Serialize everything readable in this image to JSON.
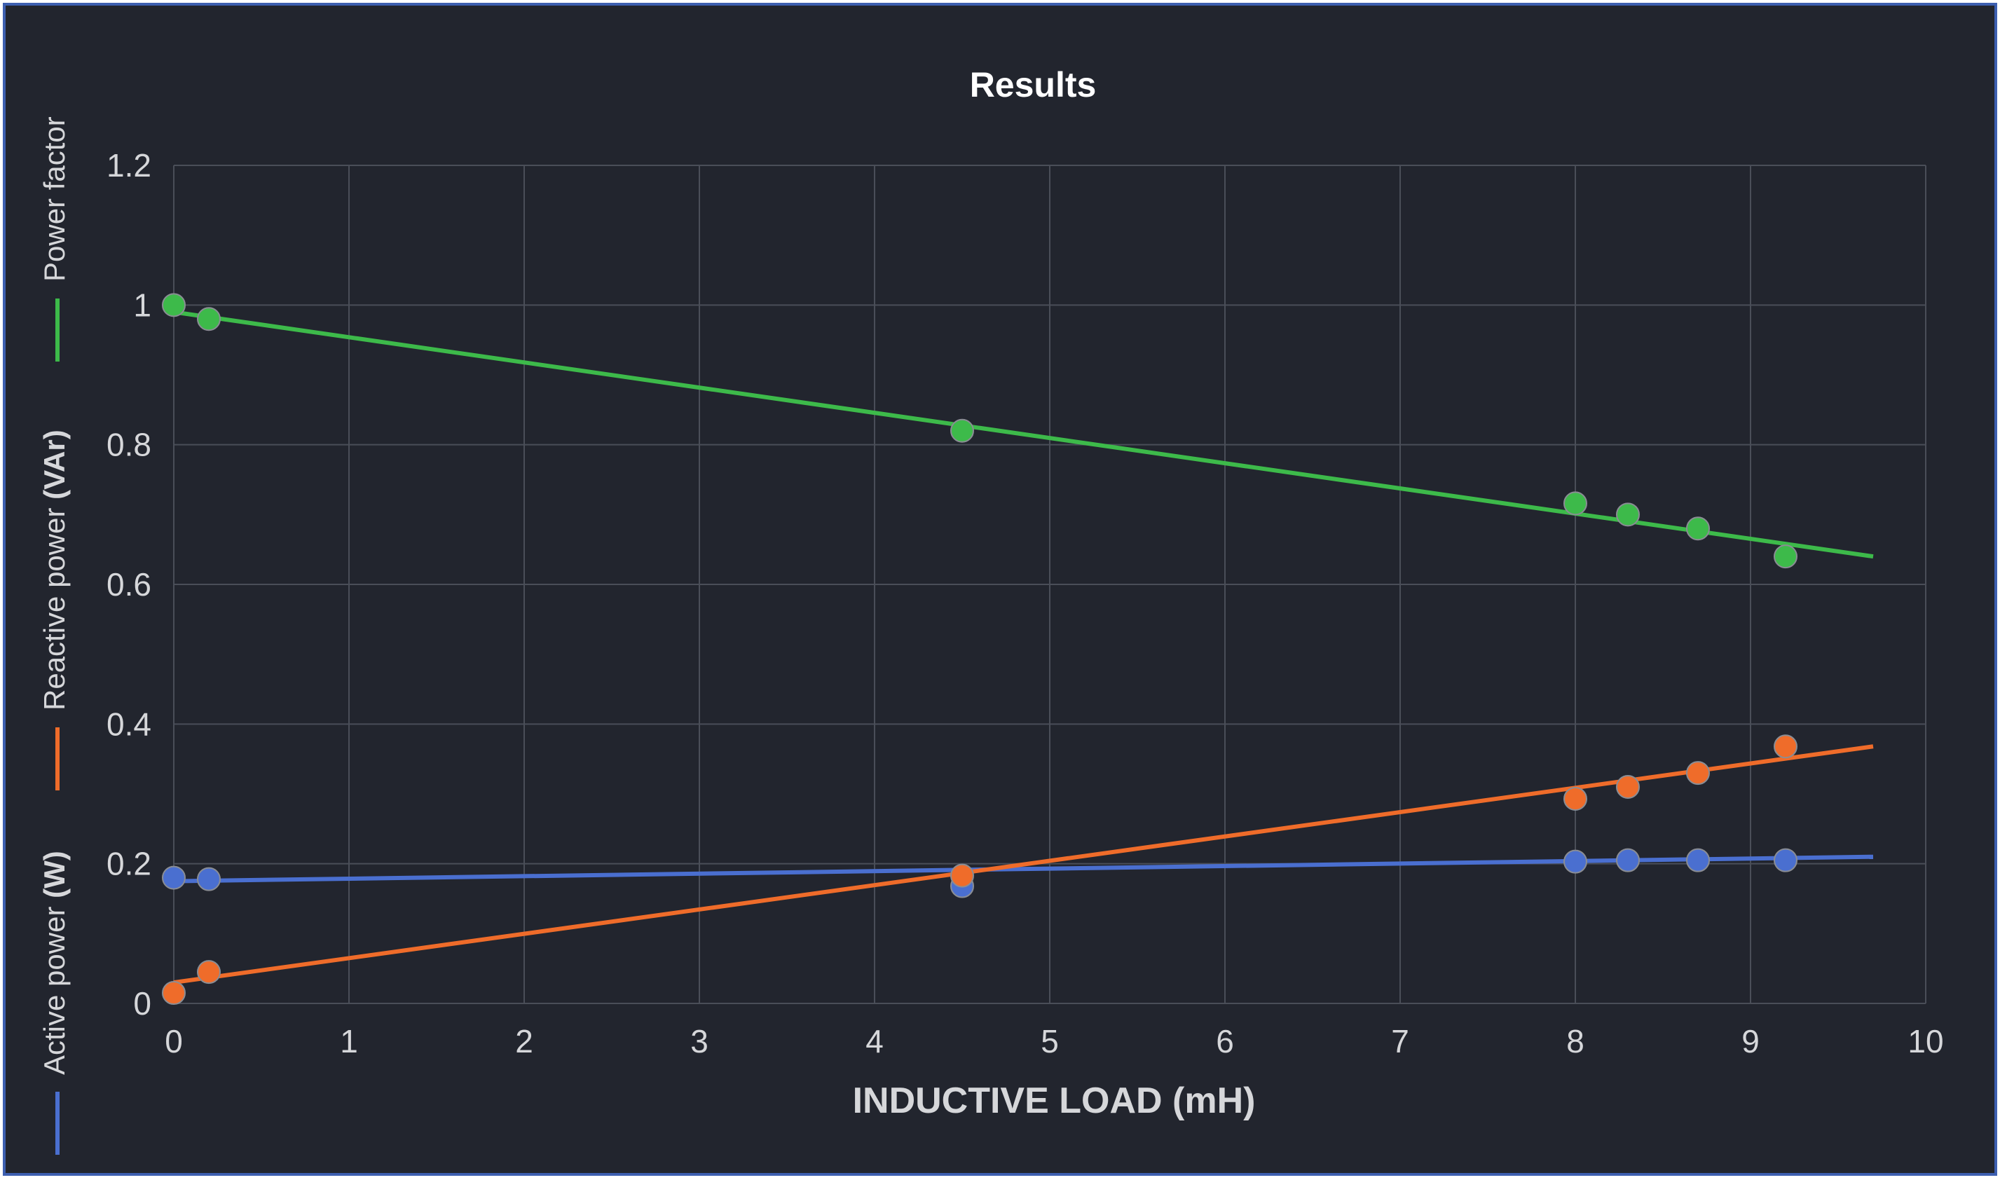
{
  "chart_data": {
    "type": "scatter",
    "title": "Results",
    "xlabel": "INDUCTIVE LOAD (mH)",
    "xlim": [
      0,
      10
    ],
    "ylim": [
      0,
      1.2
    ],
    "x_ticks": [
      "0",
      "1",
      "2",
      "3",
      "4",
      "5",
      "6",
      "7",
      "8",
      "9",
      "10"
    ],
    "y_ticks": [
      "0",
      "0.2",
      "0.4",
      "0.6",
      "0.8",
      "1",
      "1.2"
    ],
    "grid": true,
    "legend_position": "left (vertical)",
    "series": [
      {
        "name": "Active power (W)",
        "name_prefix": "Active power ",
        "name_unit": "(W)",
        "color": "#4a6fd0",
        "points": [
          [
            0,
            0.18
          ],
          [
            0.2,
            0.178
          ],
          [
            4.5,
            0.168
          ],
          [
            8,
            0.203
          ],
          [
            8.3,
            0.205
          ],
          [
            8.7,
            0.205
          ],
          [
            9.2,
            0.205
          ]
        ],
        "trendline": [
          [
            0,
            0.175
          ],
          [
            9.7,
            0.21
          ]
        ]
      },
      {
        "name": "Reactive power (VAr)",
        "name_prefix": "Reactive power ",
        "name_unit": "(VAr)",
        "color": "#ef6c2a",
        "points": [
          [
            0,
            0.015
          ],
          [
            0.2,
            0.045
          ],
          [
            4.5,
            0.183
          ],
          [
            8,
            0.293
          ],
          [
            8.3,
            0.31
          ],
          [
            8.7,
            0.33
          ],
          [
            9.2,
            0.368
          ]
        ],
        "trendline": [
          [
            0,
            0.03
          ],
          [
            9.7,
            0.368
          ]
        ]
      },
      {
        "name": "Power factor",
        "name_prefix": "Power factor",
        "name_unit": "",
        "color": "#3dba4a",
        "points": [
          [
            0,
            1.0
          ],
          [
            0.2,
            0.98
          ],
          [
            4.5,
            0.82
          ],
          [
            8,
            0.716
          ],
          [
            8.3,
            0.7
          ],
          [
            8.7,
            0.68
          ],
          [
            9.2,
            0.64
          ]
        ],
        "trendline": [
          [
            0,
            0.99
          ],
          [
            9.7,
            0.64
          ]
        ]
      }
    ]
  }
}
